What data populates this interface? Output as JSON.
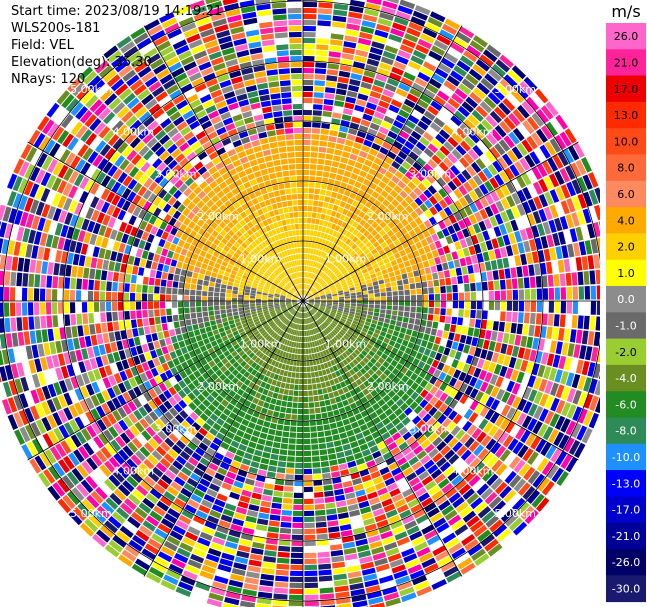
{
  "header": {
    "start_time": "Start time: 2023/08/19 14:19:21",
    "instrument": "WLS200s-181",
    "field": "Field: VEL",
    "elevation": "Elevation(deg): 35.30",
    "nrays": "NRays: 120"
  },
  "colorbar": {
    "unit": "m/s",
    "ticks": [
      "26.0",
      "21.0",
      "17.0",
      "13.0",
      "10.0",
      "8.0",
      "6.0",
      "4.0",
      "2.0",
      "1.0",
      "0.0",
      "-1.0",
      "-2.0",
      "-4.0",
      "-6.0",
      "-8.0",
      "-10.0",
      "-13.0",
      "-17.0",
      "-21.0",
      "-26.0",
      "-30.0"
    ],
    "colors": [
      "#ff66cc",
      "#ff2299",
      "#ee0000",
      "#ff2a00",
      "#ff4b18",
      "#ff6a3a",
      "#ff8a60",
      "#ffaa00",
      "#ffd000",
      "#ffff00",
      "#8c8c8c",
      "#6a6a6a",
      "#9acd32",
      "#6b8e23",
      "#228b22",
      "#2e8b57",
      "#1e90ff",
      "#0000ff",
      "#0000cc",
      "#000099",
      "#000066",
      "#191970"
    ]
  },
  "chart_data": {
    "type": "heatmap",
    "projection": "polar-ppi",
    "field": "VEL",
    "unit": "m/s",
    "nrays": 120,
    "range_rings_km": [
      1.0,
      2.0,
      3.0,
      4.0,
      5.0
    ],
    "ring_labels": [
      "1.00km",
      "2.00km",
      "3.00km",
      "4.00km",
      "5.00km"
    ],
    "max_range_km": 5.3,
    "spoke_spacing_deg": 30,
    "vmin": -30.0,
    "vmax": 26.0,
    "signal_region": {
      "northern_sector_velocity_ms": [
        2.0,
        6.0
      ],
      "southern_sector_velocity_ms": [
        -6.0,
        -2.0
      ],
      "near_zero_band_ms": [
        -1.0,
        0.0
      ],
      "approx_signal_radius_km": 2.3
    },
    "beyond_signal": "noise"
  }
}
